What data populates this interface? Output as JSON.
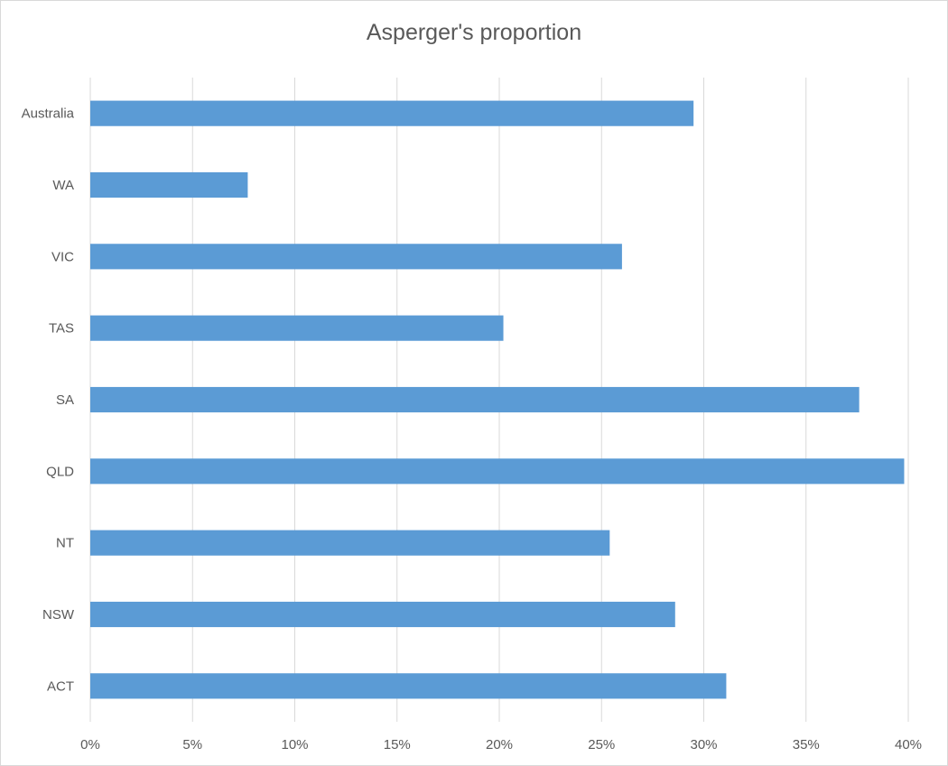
{
  "chart_data": {
    "type": "bar",
    "orientation": "horizontal",
    "title": "Asperger's proportion",
    "xlabel": "",
    "ylabel": "",
    "categories": [
      "Australia",
      "WA",
      "VIC",
      "TAS",
      "SA",
      "QLD",
      "NT",
      "NSW",
      "ACT"
    ],
    "values": [
      0.295,
      0.077,
      0.26,
      0.202,
      0.376,
      0.398,
      0.254,
      0.286,
      0.311
    ],
    "xlim": [
      0,
      0.4
    ],
    "x_ticks": [
      "0%",
      "5%",
      "10%",
      "15%",
      "20%",
      "25%",
      "30%",
      "35%",
      "40%"
    ],
    "grid": true,
    "legend": "none",
    "bar_color": "#5b9bd5",
    "grid_color": "#d9d9d9"
  }
}
